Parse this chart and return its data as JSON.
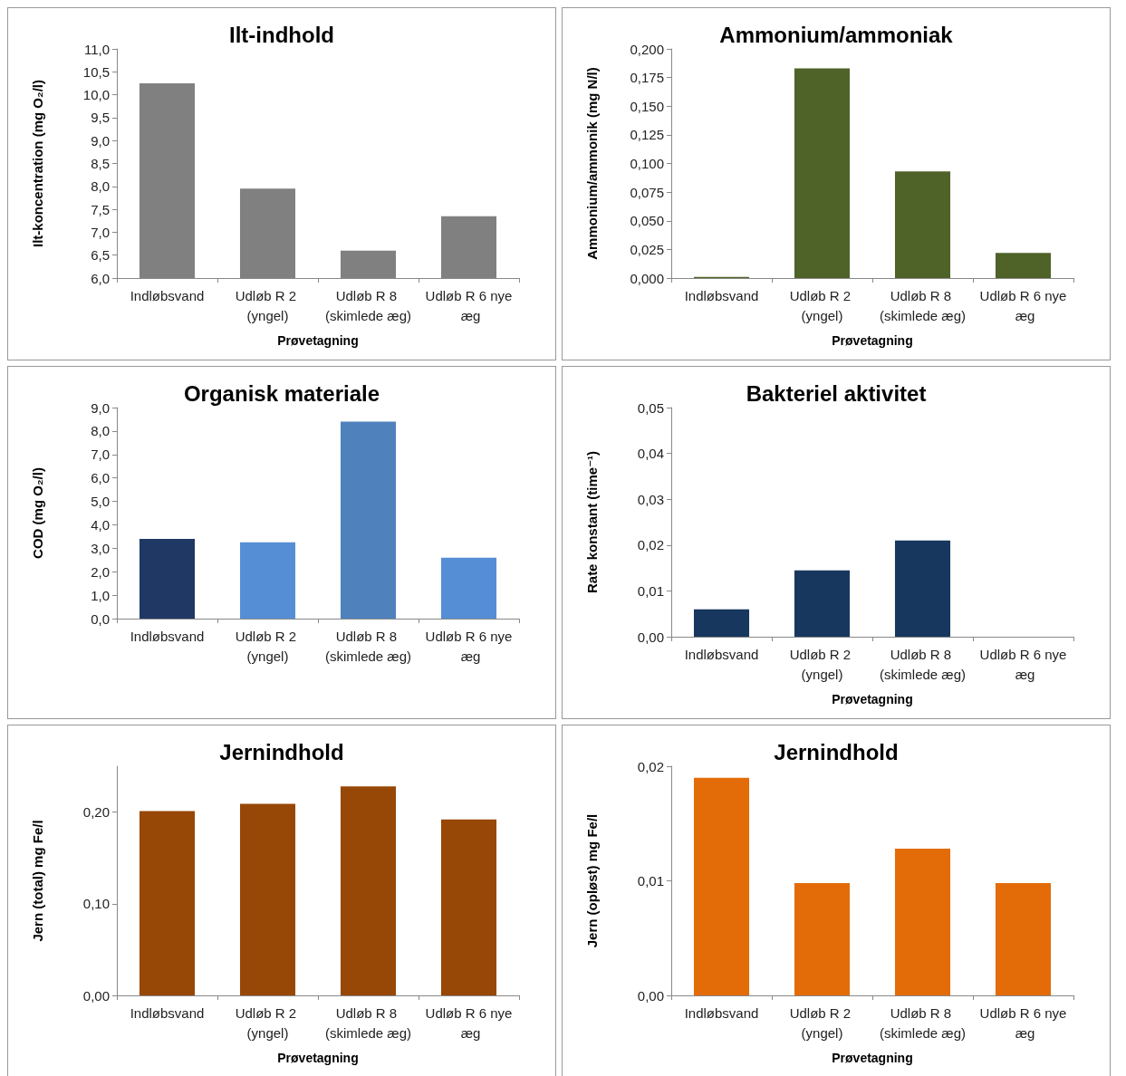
{
  "chart_data": [
    {
      "type": "bar",
      "title": "Ilt-indhold",
      "xlabel": "Prøvetagning",
      "ylabel": "Ilt-koncentration (mg O₂/l)",
      "categories": [
        "Indløbsvand",
        "Udløb R 2 (yngel)",
        "Udløb R 8 (skimlede æg)",
        "Udløb R 6 nye æg"
      ],
      "values": [
        10.25,
        7.95,
        6.6,
        7.35
      ],
      "color": "#808080",
      "ylim": [
        6,
        11
      ],
      "yticks": [
        {
          "value": 6,
          "label": "6,0"
        },
        {
          "value": 6.5,
          "label": "6,5"
        },
        {
          "value": 7,
          "label": "7,0"
        },
        {
          "value": 7.5,
          "label": "7,5"
        },
        {
          "value": 8,
          "label": "8,0"
        },
        {
          "value": 8.5,
          "label": "8,5"
        },
        {
          "value": 9,
          "label": "9,0"
        },
        {
          "value": 9.5,
          "label": "9,5"
        },
        {
          "value": 10,
          "label": "10,0"
        },
        {
          "value": 10.5,
          "label": "10,5"
        },
        {
          "value": 11,
          "label": "11,0"
        }
      ]
    },
    {
      "type": "bar",
      "title": "Ammonium/ammoniak",
      "xlabel": "Prøvetagning",
      "ylabel": "Ammonium/ammonik (mg N/l)",
      "categories": [
        "Indløbsvand",
        "Udløb R 2 (yngel)",
        "Udløb R 8 (skimlede æg)",
        "Udløb R 6 nye æg"
      ],
      "values": [
        0.001,
        0.183,
        0.093,
        0.022
      ],
      "color": "#4f6228",
      "ylim": [
        0,
        0.2
      ],
      "yticks": [
        {
          "value": 0,
          "label": "0,000"
        },
        {
          "value": 0.025,
          "label": "0,025"
        },
        {
          "value": 0.05,
          "label": "0,050"
        },
        {
          "value": 0.075,
          "label": "0,075"
        },
        {
          "value": 0.1,
          "label": "0,100"
        },
        {
          "value": 0.125,
          "label": "0,125"
        },
        {
          "value": 0.15,
          "label": "0,150"
        },
        {
          "value": 0.175,
          "label": "0,175"
        },
        {
          "value": 0.2,
          "label": "0,200"
        }
      ]
    },
    {
      "type": "bar",
      "title": "Organisk materiale",
      "ylabel": "COD (mg O₂/l)",
      "categories": [
        "Indløbsvand",
        "Udløb R 2 (yngel)",
        "Udløb R 8 (skimlede æg)",
        "Udløb R 6 nye æg"
      ],
      "values": [
        3.4,
        3.25,
        8.4,
        2.6
      ],
      "colors": [
        "#1f3864",
        "#558ed5",
        "#4f81bd",
        "#558ed5"
      ],
      "ylim": [
        0,
        9
      ],
      "yticks": [
        {
          "value": 0,
          "label": "0,0"
        },
        {
          "value": 1,
          "label": "1,0"
        },
        {
          "value": 2,
          "label": "2,0"
        },
        {
          "value": 3,
          "label": "3,0"
        },
        {
          "value": 4,
          "label": "4,0"
        },
        {
          "value": 5,
          "label": "5,0"
        },
        {
          "value": 6,
          "label": "6,0"
        },
        {
          "value": 7,
          "label": "7,0"
        },
        {
          "value": 8,
          "label": "8,0"
        },
        {
          "value": 9,
          "label": "9,0"
        }
      ]
    },
    {
      "type": "bar",
      "title": "Bakteriel aktivitet",
      "xlabel": "Prøvetagning",
      "ylabel": "Rate konstant (time⁻¹)",
      "categories": [
        "Indløbsvand",
        "Udløb R 2 (yngel)",
        "Udløb R 8 (skimlede æg)",
        "Udløb R 6 nye æg"
      ],
      "values": [
        0.006,
        0.0145,
        0.021,
        null
      ],
      "color": "#17375e",
      "ylim": [
        0,
        0.05
      ],
      "yticks": [
        {
          "value": 0,
          "label": "0,00"
        },
        {
          "value": 0.01,
          "label": "0,01"
        },
        {
          "value": 0.02,
          "label": "0,02"
        },
        {
          "value": 0.03,
          "label": "0,03"
        },
        {
          "value": 0.04,
          "label": "0,04"
        },
        {
          "value": 0.05,
          "label": "0,05"
        }
      ]
    },
    {
      "type": "bar",
      "title": "Jernindhold",
      "xlabel": "Prøvetagning",
      "ylabel": "Jern (total) mg Fe/l",
      "categories": [
        "Indløbsvand",
        "Udløb R 2 (yngel)",
        "Udløb R 8 (skimlede æg)",
        "Udløb R 6 nye æg"
      ],
      "values": [
        0.201,
        0.209,
        0.228,
        0.192
      ],
      "color": "#974706",
      "ylim": [
        0,
        0.25
      ],
      "yticks": [
        {
          "value": 0,
          "label": "0,00"
        },
        {
          "value": 0.1,
          "label": "0,10"
        },
        {
          "value": 0.2,
          "label": "0,20"
        }
      ]
    },
    {
      "type": "bar",
      "title": "Jernindhold",
      "xlabel": "Prøvetagning",
      "ylabel": "Jern (opløst) mg Fe/l",
      "categories": [
        "Indløbsvand",
        "Udløb R 2 (yngel)",
        "Udløb R 8 (skimlede æg)",
        "Udløb R 6 nye æg"
      ],
      "values": [
        0.019,
        0.0098,
        0.0128,
        0.0098
      ],
      "color": "#e36c09",
      "ylim": [
        0,
        0.02
      ],
      "yticks": [
        {
          "value": 0,
          "label": "0,00"
        },
        {
          "value": 0.01,
          "label": "0,01"
        },
        {
          "value": 0.02,
          "label": "0,02"
        }
      ]
    }
  ]
}
